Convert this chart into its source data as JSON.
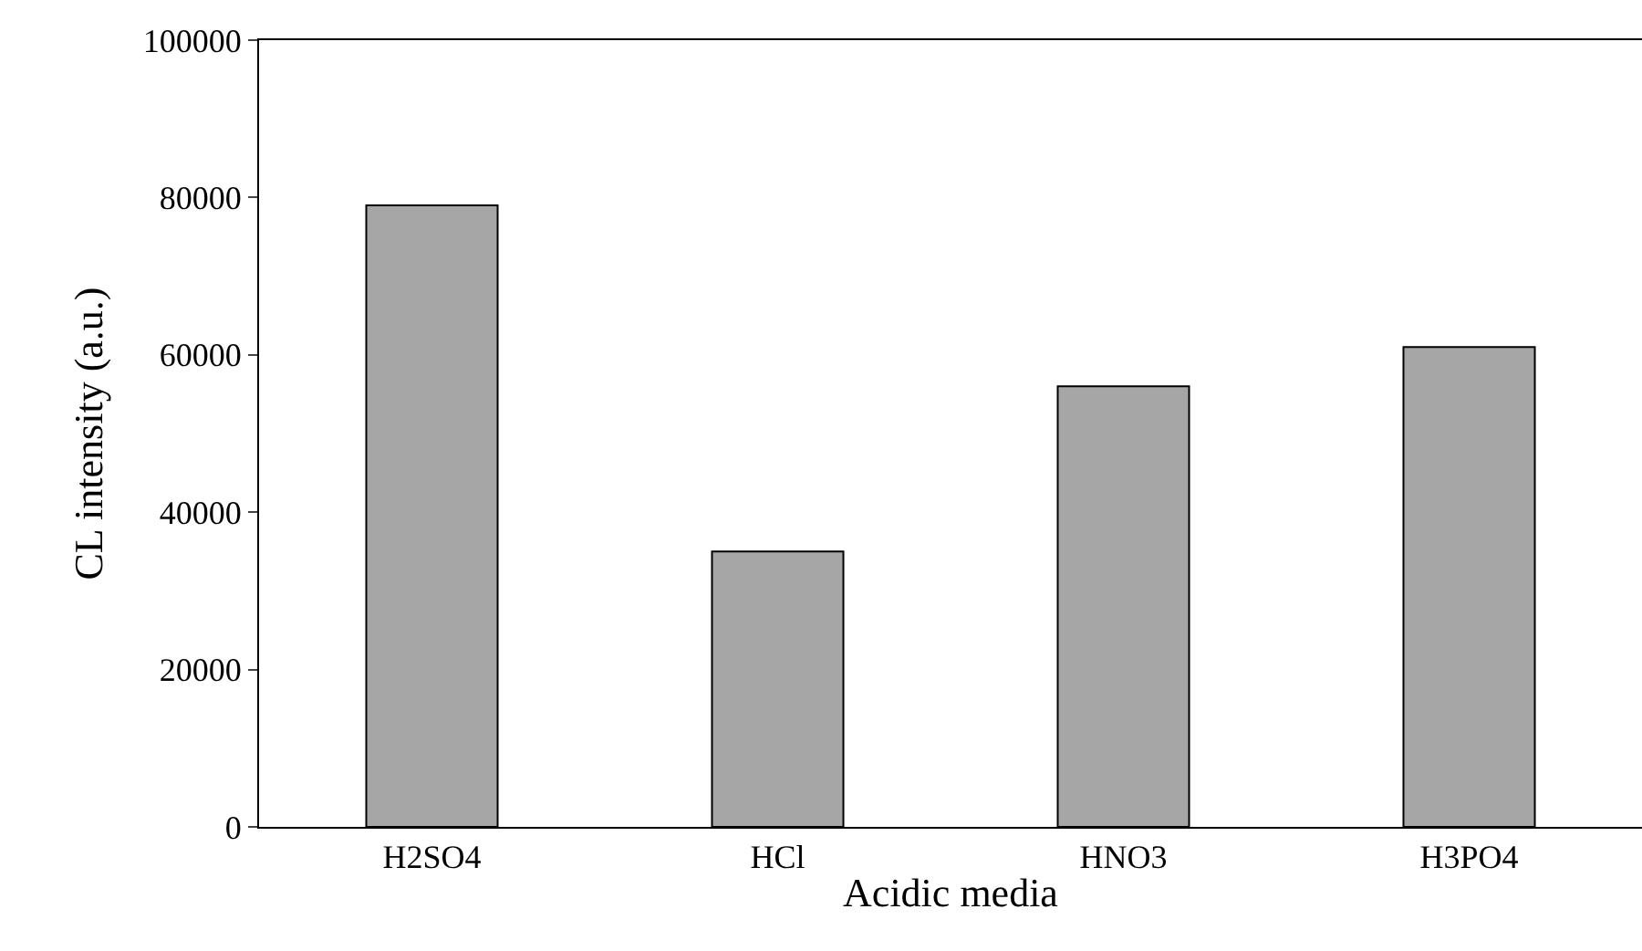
{
  "chart_data": {
    "type": "bar",
    "xlabel": "Acidic media",
    "ylabel": "CL intensity (a.u.)",
    "categories": [
      "H2SO4",
      "HCl",
      "HNO3",
      "H3PO4"
    ],
    "values": [
      79000,
      35000,
      56000,
      61000
    ],
    "color": "#a6a6a6",
    "ylim": [
      0,
      100000
    ],
    "yticks": [
      0,
      20000,
      40000,
      60000,
      80000,
      100000
    ]
  }
}
